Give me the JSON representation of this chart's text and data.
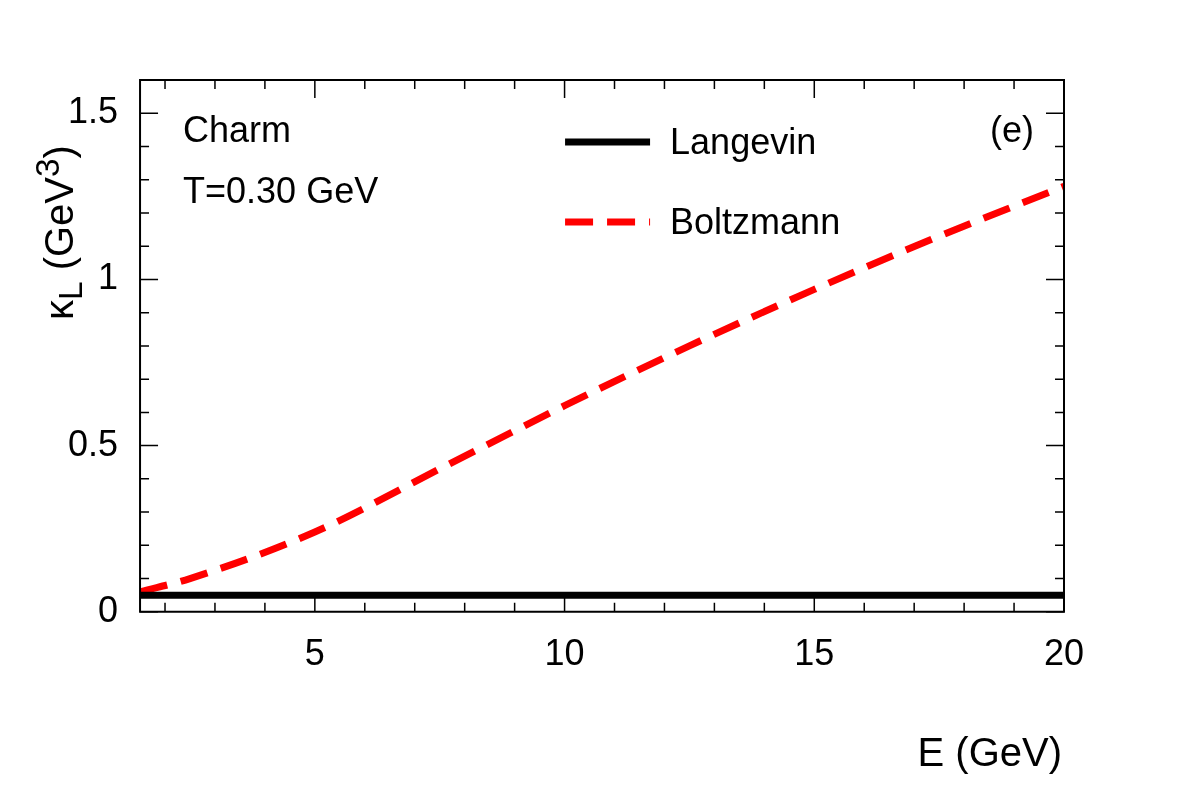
{
  "chart_data": {
    "type": "line",
    "xlabel": "E (GeV)",
    "ylabel": "κ$_{L}$ (GeV$^{3}$)",
    "annotations": [
      "Charm",
      "T=0.30 GeV",
      "(e)"
    ],
    "legend": "top",
    "grid": false,
    "marker": "none",
    "xlim": [
      1.5,
      20
    ],
    "xticks": [
      {
        "value": 2,
        "label": null
      },
      {
        "value": 3,
        "label": null
      },
      {
        "value": 4,
        "label": null
      },
      5,
      {
        "value": 6,
        "label": null
      },
      {
        "value": 7,
        "label": null
      },
      {
        "value": 8,
        "label": null
      },
      {
        "value": 9,
        "label": null
      },
      10,
      {
        "value": 11,
        "label": null
      },
      {
        "value": 12,
        "label": null
      },
      {
        "value": 13,
        "label": null
      },
      {
        "value": 14,
        "label": null
      },
      15,
      {
        "value": 16,
        "label": null
      },
      {
        "value": 17,
        "label": null
      },
      {
        "value": 18,
        "label": null
      },
      {
        "value": 19,
        "label": null
      },
      20
    ],
    "ylim": [
      0,
      1.6
    ],
    "yticks": [
      0,
      {
        "value": 0.1,
        "label": null
      },
      {
        "value": 0.2,
        "label": null
      },
      {
        "value": 0.3,
        "label": null
      },
      {
        "value": 0.4,
        "label": null
      },
      0.5,
      {
        "value": 0.6,
        "label": null
      },
      {
        "value": 0.7,
        "label": null
      },
      {
        "value": 0.8,
        "label": null
      },
      {
        "value": 0.9,
        "label": null
      },
      1,
      {
        "value": 1.1,
        "label": null
      },
      {
        "value": 1.2,
        "label": null
      },
      {
        "value": 1.3,
        "label": null
      },
      {
        "value": 1.4,
        "label": null
      },
      1.5
    ],
    "series": [
      {
        "name": "Langevin",
        "color": "#000000",
        "line_style": "solid",
        "x": [
          1.5,
          20
        ],
        "values": [
          0.05,
          0.05
        ]
      },
      {
        "name": "Boltzmann",
        "color": "#ff0000",
        "line_style": "dashed",
        "x": [
          1.5,
          2.5,
          5,
          7.5,
          10,
          12.5,
          15,
          17.5,
          20
        ],
        "values": [
          0.06,
          0.1,
          0.24,
          0.43,
          0.62,
          0.8,
          0.97,
          1.13,
          1.28
        ]
      }
    ]
  }
}
